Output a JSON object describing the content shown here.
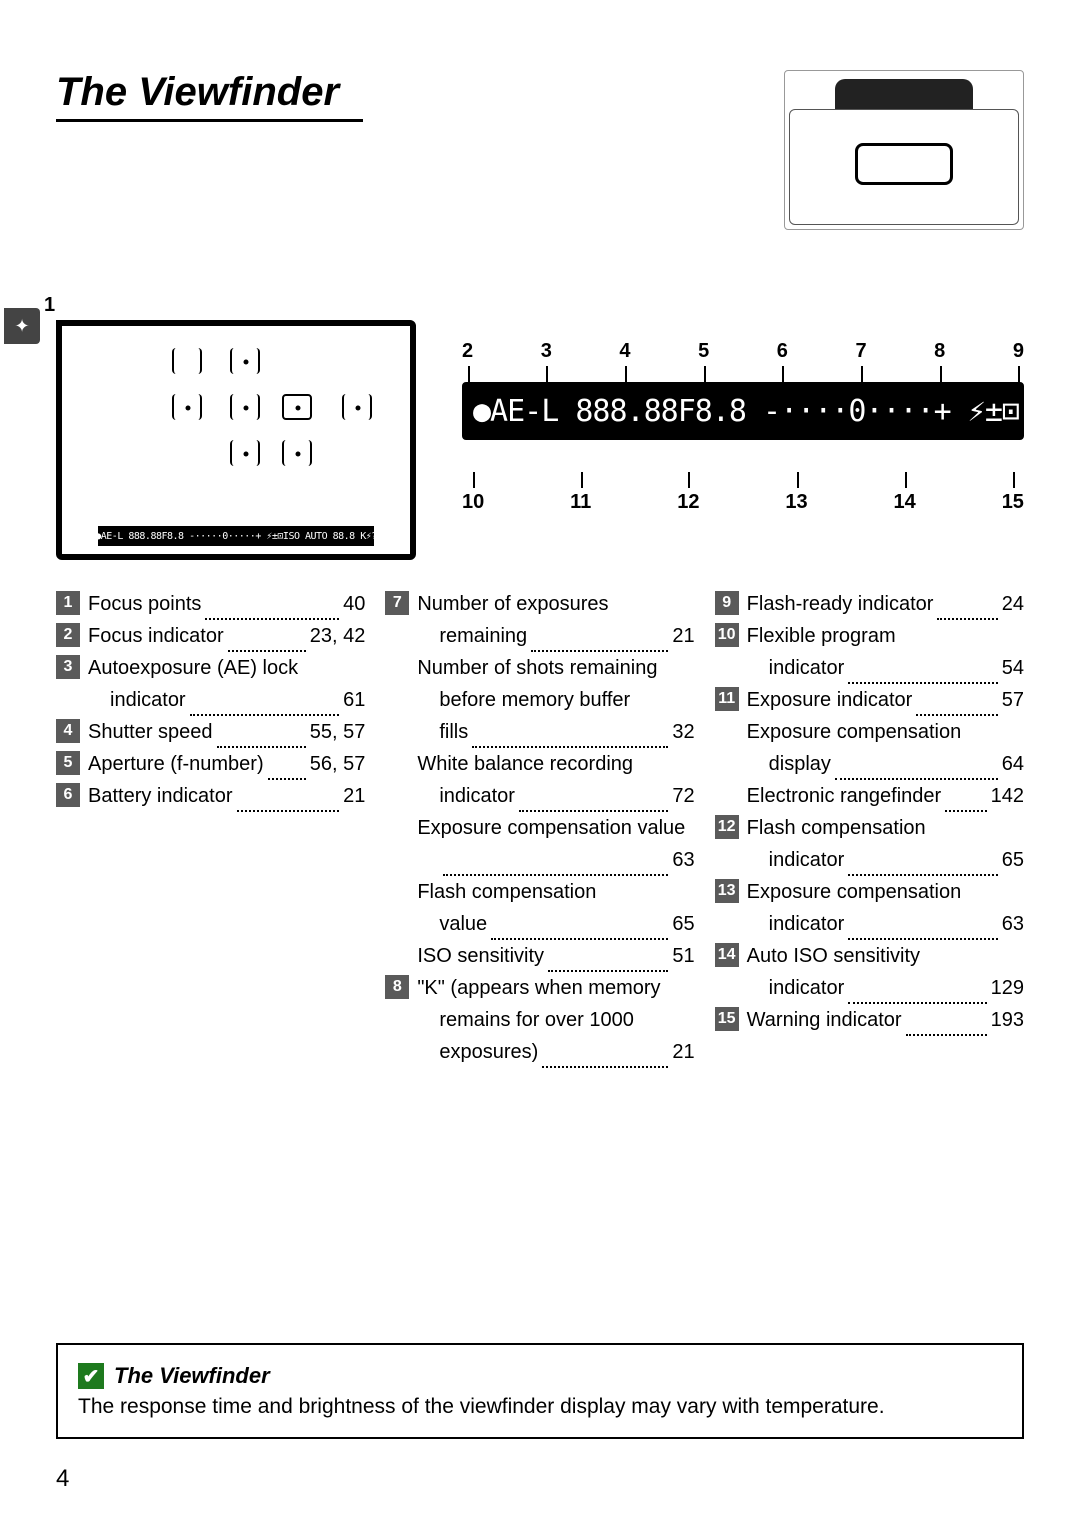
{
  "title": "The Viewfinder",
  "lcd_strip_text": "●AE-L 888.88F8.8 -·····0·····+ ⚡±⊡ISO AUTO 88.8 K⚡?",
  "lcd_zoom_text": "●AE-L 888.88F8.8 -····0····+ ⚡±⊡ ISO AUTO 88.8 K⚡?",
  "callout_numbers": {
    "pointer_1": "1",
    "top": [
      "2",
      "3",
      "4",
      "5",
      "6",
      "7",
      "8",
      "9"
    ],
    "bottom": [
      "10",
      "11",
      "12",
      "13",
      "14",
      "15"
    ]
  },
  "columns": [
    [
      {
        "n": "1",
        "rows": [
          {
            "l": "Focus points",
            "p": "40"
          }
        ]
      },
      {
        "n": "2",
        "rows": [
          {
            "l": "Focus indicator",
            "p": "23, 42"
          }
        ]
      },
      {
        "n": "3",
        "rows": [
          {
            "l": "Autoexposure (AE) lock"
          },
          {
            "l": "indicator",
            "p": "61",
            "sub": true
          }
        ]
      },
      {
        "n": "4",
        "rows": [
          {
            "l": "Shutter speed",
            "p": "55, 57"
          }
        ]
      },
      {
        "n": "5",
        "rows": [
          {
            "l": "Aperture (f-number)",
            "p": "56, 57"
          }
        ]
      },
      {
        "n": "6",
        "rows": [
          {
            "l": "Battery indicator",
            "p": "21"
          }
        ]
      }
    ],
    [
      {
        "n": "7",
        "rows": [
          {
            "l": "Number of exposures"
          },
          {
            "l": "remaining",
            "p": "21",
            "sub": true
          },
          {
            "l": "Number of shots remaining"
          },
          {
            "l": "before memory buffer",
            "sub": true
          },
          {
            "l": "fills",
            "p": "32",
            "sub": true
          },
          {
            "l": "White balance recording"
          },
          {
            "l": "indicator",
            "p": "72",
            "sub": true
          },
          {
            "l": "Exposure compensation value"
          },
          {
            "l": "",
            "p": "63",
            "sub": true
          },
          {
            "l": "Flash compensation"
          },
          {
            "l": "value",
            "p": "65",
            "sub": true
          },
          {
            "l": "ISO sensitivity",
            "p": "51"
          }
        ]
      },
      {
        "n": "8",
        "rows": [
          {
            "l": "\"K\" (appears when memory"
          },
          {
            "l": "remains for over 1000",
            "sub": true
          },
          {
            "l": "exposures)",
            "p": "21",
            "sub": true
          }
        ]
      }
    ],
    [
      {
        "n": "9",
        "rows": [
          {
            "l": "Flash-ready indicator",
            "p": "24"
          }
        ]
      },
      {
        "n": "10",
        "rows": [
          {
            "l": "Flexible program"
          },
          {
            "l": "indicator",
            "p": "54",
            "sub": true
          }
        ]
      },
      {
        "n": "11",
        "rows": [
          {
            "l": "Exposure indicator",
            "p": "57"
          },
          {
            "l": "Exposure compensation"
          },
          {
            "l": "display",
            "p": "64",
            "sub": true
          },
          {
            "l": "Electronic rangefinder",
            "p": "142"
          }
        ]
      },
      {
        "n": "12",
        "rows": [
          {
            "l": "Flash compensation"
          },
          {
            "l": "indicator",
            "p": "65",
            "sub": true
          }
        ]
      },
      {
        "n": "13",
        "rows": [
          {
            "l": "Exposure compensation"
          },
          {
            "l": "indicator",
            "p": "63",
            "sub": true
          }
        ]
      },
      {
        "n": "14",
        "rows": [
          {
            "l": "Auto ISO sensitivity"
          },
          {
            "l": "indicator",
            "p": "129",
            "sub": true
          }
        ]
      },
      {
        "n": "15",
        "rows": [
          {
            "l": "Warning indicator",
            "p": "193"
          }
        ]
      }
    ]
  ],
  "note": {
    "title": "The Viewfinder",
    "text": "The response time and brightness of the viewfinder display may vary with temperature."
  },
  "page_number": "4",
  "tab_icon": "✦"
}
